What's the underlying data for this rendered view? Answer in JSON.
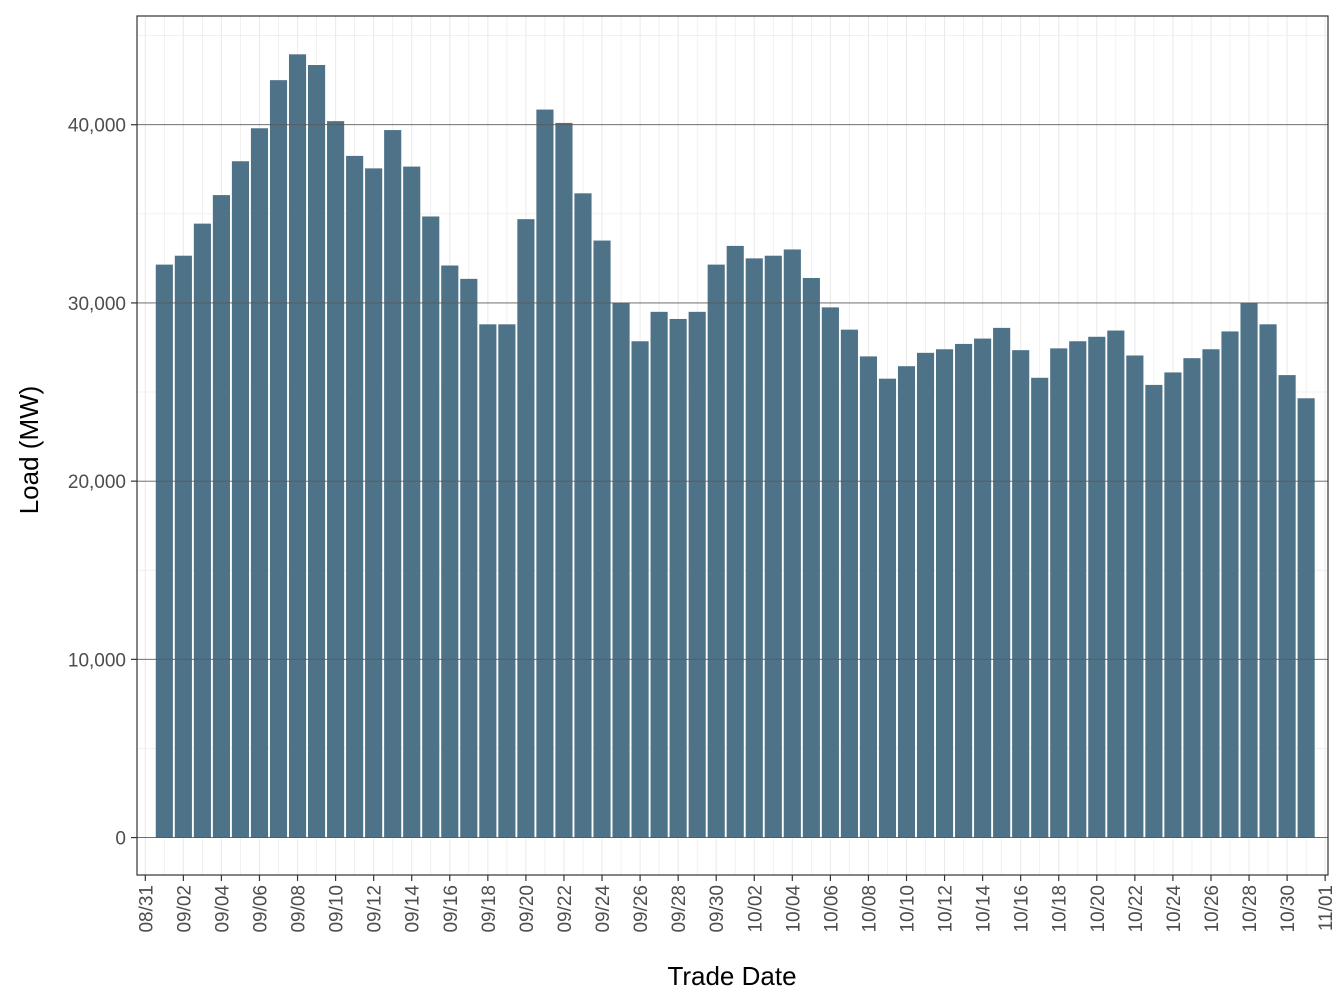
{
  "chart_data": {
    "type": "bar",
    "xlabel": "Trade Date",
    "ylabel": "Load (MW)",
    "ylim": [
      -2100,
      46100
    ],
    "y_ticks": [
      0,
      10000,
      20000,
      30000,
      40000
    ],
    "y_tick_labels": [
      "0",
      "10,000",
      "20,000",
      "30,000",
      "40,000"
    ],
    "x_tick_labels": [
      "08/31",
      "09/02",
      "09/04",
      "09/06",
      "09/08",
      "09/10",
      "09/12",
      "09/14",
      "09/16",
      "09/18",
      "09/20",
      "09/22",
      "09/24",
      "09/26",
      "09/28",
      "09/30",
      "10/02",
      "10/04",
      "10/06",
      "10/08",
      "10/10",
      "10/12",
      "10/14",
      "10/16",
      "10/18",
      "10/20",
      "10/22",
      "10/24",
      "10/26",
      "10/28",
      "10/30",
      "11/01"
    ],
    "grid": true,
    "bar_color": "#4e7287",
    "categories": [
      "09/01",
      "09/02",
      "09/03",
      "09/04",
      "09/05",
      "09/06",
      "09/07",
      "09/08",
      "09/09",
      "09/10",
      "09/11",
      "09/12",
      "09/13",
      "09/14",
      "09/15",
      "09/16",
      "09/17",
      "09/18",
      "09/19",
      "09/20",
      "09/21",
      "09/22",
      "09/23",
      "09/24",
      "09/25",
      "09/26",
      "09/27",
      "09/28",
      "09/29",
      "09/30",
      "10/01",
      "10/02",
      "10/03",
      "10/04",
      "10/05",
      "10/06",
      "10/07",
      "10/08",
      "10/09",
      "10/10",
      "10/11",
      "10/12",
      "10/13",
      "10/14",
      "10/15",
      "10/16",
      "10/17",
      "10/18",
      "10/19",
      "10/20",
      "10/21",
      "10/22",
      "10/23",
      "10/24",
      "10/25",
      "10/26",
      "10/27",
      "10/28",
      "10/29",
      "10/30",
      "10/31"
    ],
    "values": [
      32150,
      32650,
      34450,
      36050,
      37950,
      39800,
      42500,
      43950,
      43350,
      40200,
      38250,
      37550,
      39700,
      37650,
      34850,
      32100,
      31350,
      28800,
      28800,
      34700,
      40850,
      40100,
      36150,
      33500,
      30000,
      27850,
      29500,
      29100,
      29500,
      32150,
      33200,
      32500,
      32650,
      33000,
      31400,
      29750,
      28500,
      27000,
      25750,
      26450,
      27200,
      27400,
      27700,
      28000,
      28600,
      27350,
      25800,
      27450,
      27850,
      28100,
      28450,
      27050,
      25400,
      26100,
      26900,
      27400,
      28400,
      30000,
      28800,
      25950,
      24650
    ]
  }
}
